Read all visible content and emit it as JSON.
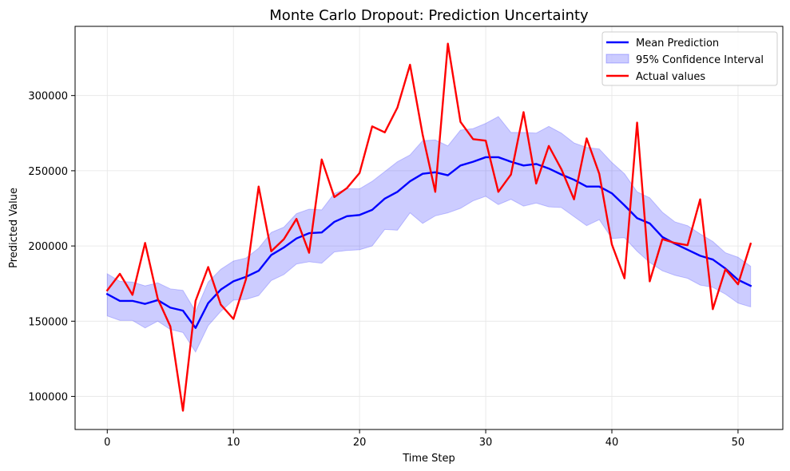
{
  "chart_data": {
    "type": "line",
    "title": "Monte Carlo Dropout: Prediction Uncertainty",
    "xlabel": "Time Step",
    "ylabel": "Predicted Value",
    "xlim": [
      -2.55,
      53.55
    ],
    "ylim": [
      78000,
      346000
    ],
    "xticks": [
      0,
      10,
      20,
      30,
      40,
      50
    ],
    "yticks": [
      100000,
      150000,
      200000,
      250000,
      300000
    ],
    "grid": true,
    "legend_position": "top-right",
    "x": [
      0,
      1,
      2,
      3,
      4,
      5,
      6,
      7,
      8,
      9,
      10,
      11,
      12,
      13,
      14,
      15,
      16,
      17,
      18,
      19,
      20,
      21,
      22,
      23,
      24,
      25,
      26,
      27,
      28,
      29,
      30,
      31,
      32,
      33,
      34,
      35,
      36,
      37,
      38,
      39,
      40,
      41,
      42,
      43,
      44,
      45,
      46,
      47,
      48,
      49,
      50,
      51
    ],
    "series": [
      {
        "name": "Mean Prediction",
        "kind": "line",
        "color": "#0000ff",
        "values": [
          168000,
          163500,
          163500,
          161500,
          164000,
          159000,
          157000,
          145500,
          162000,
          171000,
          176500,
          179500,
          183500,
          194000,
          199000,
          205000,
          208500,
          209000,
          216000,
          219800,
          220600,
          224000,
          231500,
          236000,
          243000,
          248000,
          249000,
          247000,
          253500,
          256000,
          259000,
          259000,
          256000,
          253500,
          254500,
          251500,
          247500,
          244000,
          239500,
          239500,
          235000,
          227000,
          218500,
          215000,
          206000,
          201500,
          197500,
          193500,
          191000,
          185000,
          177500,
          173500
        ]
      },
      {
        "name": "95% Confidence Interval",
        "kind": "band",
        "color": "#0000ff",
        "lower": [
          153500,
          150500,
          150500,
          145500,
          150000,
          144500,
          142500,
          129500,
          147000,
          156500,
          164000,
          164500,
          167000,
          177000,
          181000,
          188000,
          189500,
          188500,
          196000,
          197000,
          197500,
          200000,
          211000,
          210500,
          222000,
          215000,
          220000,
          222000,
          225000,
          230000,
          233000,
          227500,
          231000,
          226500,
          228500,
          226000,
          225500,
          219500,
          213500,
          217500,
          205000,
          205500,
          196500,
          189000,
          183500,
          180500,
          178500,
          174000,
          172500,
          168000,
          162000,
          159500
        ],
        "upper": [
          181500,
          176500,
          176000,
          173500,
          175500,
          171500,
          170500,
          156500,
          176000,
          184500,
          190000,
          192000,
          198500,
          209000,
          212500,
          221500,
          224500,
          224000,
          235000,
          238000,
          238000,
          243000,
          249500,
          256000,
          260500,
          270000,
          270500,
          266500,
          277000,
          278000,
          281500,
          286000,
          275500,
          275500,
          275000,
          279500,
          275000,
          268500,
          265500,
          264500,
          255500,
          248000,
          236000,
          232000,
          222500,
          216000,
          213500,
          208000,
          203000,
          195500,
          192500,
          186500
        ]
      },
      {
        "name": "Actual values",
        "kind": "line",
        "color": "#ff0000",
        "values": [
          170500,
          181500,
          167500,
          202000,
          165000,
          146500,
          90500,
          163500,
          186000,
          161000,
          151500,
          178000,
          239500,
          196500,
          204500,
          218000,
          195500,
          257500,
          232500,
          238500,
          248500,
          279500,
          275500,
          292000,
          320500,
          274000,
          236000,
          334500,
          282500,
          271000,
          270000,
          236000,
          247500,
          289000,
          241500,
          266500,
          251000,
          231000,
          271500,
          248000,
          201000,
          178500,
          282000,
          176500,
          204500,
          202000,
          200500,
          231000,
          158000,
          184500,
          174500,
          201500
        ]
      }
    ]
  }
}
